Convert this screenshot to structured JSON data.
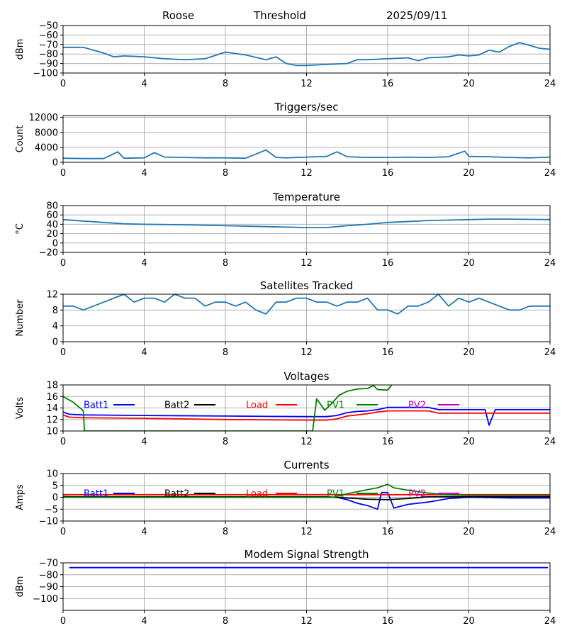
{
  "header": {
    "site": "Roose",
    "mode": "Threshold",
    "date": "2025/09/11"
  },
  "chart_data": [
    {
      "type": "line",
      "title": "",
      "ylabel": "dBm",
      "xlim": [
        0,
        24
      ],
      "ylim": [
        -100,
        -50
      ],
      "xticks": [
        "0",
        "4",
        "8",
        "12",
        "16",
        "20",
        "24"
      ],
      "yticks": [
        "−50",
        "−60",
        "−70",
        "−80",
        "−90",
        "−100"
      ],
      "grid": true,
      "series": [
        {
          "color": "#1f77b4",
          "x": [
            0,
            1,
            2,
            2.5,
            3,
            4,
            5,
            6,
            7,
            8,
            9,
            10,
            10.5,
            11,
            11.5,
            12,
            13,
            14,
            14.5,
            15,
            16,
            17,
            17.5,
            18,
            19,
            19.5,
            20,
            20.5,
            21,
            21.5,
            22,
            22.5,
            23,
            23.5,
            24
          ],
          "y": [
            -73,
            -73,
            -79,
            -83,
            -82,
            -83,
            -85,
            -86,
            -85,
            -78,
            -81,
            -86,
            -83,
            -90,
            -92,
            -92,
            -91,
            -90,
            -86,
            -86,
            -85,
            -84,
            -87,
            -84,
            -83,
            -81,
            -82,
            -81,
            -76,
            -78,
            -72,
            -68,
            -71,
            -74,
            -75
          ]
        }
      ]
    },
    {
      "type": "line",
      "title": "Triggers/sec",
      "ylabel": "Count",
      "xlim": [
        0,
        24
      ],
      "ylim": [
        0,
        12500
      ],
      "xticks": [
        "0",
        "4",
        "8",
        "12",
        "16",
        "20",
        "24"
      ],
      "yticks": [
        "12000",
        "8000",
        "4000",
        "0"
      ],
      "grid": true,
      "series": [
        {
          "color": "#1f77b4",
          "x": [
            0,
            1,
            2,
            2.7,
            3,
            4,
            4.5,
            5,
            6,
            7,
            8,
            9,
            10,
            10.5,
            11,
            12,
            13,
            13.5,
            14,
            15,
            16,
            17,
            18,
            19,
            19.8,
            20,
            21,
            22,
            23,
            24
          ],
          "y": [
            1100,
            1000,
            1000,
            2800,
            1100,
            1200,
            2600,
            1400,
            1300,
            1200,
            1200,
            1100,
            3300,
            1300,
            1200,
            1400,
            1600,
            2800,
            1500,
            1300,
            1300,
            1400,
            1300,
            1500,
            3000,
            1600,
            1500,
            1300,
            1200,
            1400
          ]
        }
      ]
    },
    {
      "type": "line",
      "title": "Temperature",
      "ylabel": "°C",
      "xlim": [
        0,
        24
      ],
      "ylim": [
        -20,
        80
      ],
      "xticks": [
        "0",
        "4",
        "8",
        "12",
        "16",
        "20",
        "24"
      ],
      "yticks": [
        "80",
        "60",
        "40",
        "20",
        "0",
        "−20"
      ],
      "grid": true,
      "series": [
        {
          "color": "#1f77b4",
          "x": [
            0,
            1,
            2,
            3,
            4,
            6,
            8,
            10,
            12,
            13,
            14,
            15,
            16,
            18,
            20,
            21,
            22,
            24
          ],
          "y": [
            50,
            47,
            44,
            41,
            40,
            39,
            37,
            35,
            33,
            33,
            37,
            40,
            44,
            48,
            50,
            51,
            51,
            50
          ]
        }
      ]
    },
    {
      "type": "line",
      "title": "Satellites Tracked",
      "ylabel": "Number",
      "xlim": [
        0,
        24
      ],
      "ylim": [
        0,
        12
      ],
      "xticks": [
        "0",
        "4",
        "8",
        "12",
        "16",
        "20",
        "24"
      ],
      "yticks": [
        "12",
        "8",
        "4",
        "0"
      ],
      "grid": true,
      "series": [
        {
          "color": "#1f77b4",
          "x": [
            0,
            0.5,
            1,
            1.5,
            2,
            2.5,
            3,
            3.5,
            4,
            4.5,
            5,
            5.5,
            6,
            6.5,
            7,
            7.5,
            8,
            8.5,
            9,
            9.5,
            10,
            10.5,
            11,
            11.5,
            12,
            12.5,
            13,
            13.5,
            14,
            14.5,
            15,
            15.5,
            16,
            16.5,
            17,
            17.5,
            18,
            18.5,
            19,
            19.5,
            20,
            20.5,
            21,
            21.5,
            22,
            22.5,
            23,
            23.5,
            24
          ],
          "y": [
            9,
            9,
            8,
            9,
            10,
            11,
            12,
            10,
            11,
            11,
            10,
            12,
            11,
            11,
            9,
            10,
            10,
            9,
            10,
            8,
            7,
            10,
            10,
            11,
            11,
            10,
            10,
            9,
            10,
            10,
            11,
            8,
            8,
            7,
            9,
            9,
            10,
            12,
            9,
            11,
            10,
            11,
            10,
            9,
            8,
            8,
            9,
            9,
            9
          ]
        }
      ]
    },
    {
      "type": "line",
      "title": "Voltages",
      "ylabel": "Volts",
      "xlim": [
        0,
        24
      ],
      "ylim": [
        10,
        18
      ],
      "xticks": [
        "0",
        "4",
        "8",
        "12",
        "16",
        "20",
        "24"
      ],
      "yticks": [
        "18",
        "16",
        "14",
        "12",
        "10"
      ],
      "grid": true,
      "legend": [
        "Batt1",
        "Batt2",
        "Load",
        "PV1",
        "PV2"
      ],
      "series": [
        {
          "name": "Batt1",
          "color": "#0000ff",
          "x": [
            0,
            0.3,
            1,
            4,
            8,
            12,
            13,
            13.5,
            14,
            14.5,
            15,
            15.5,
            16,
            17,
            18,
            18.5,
            20,
            20.8,
            21,
            21.3,
            22,
            24
          ],
          "y": [
            13.3,
            12.9,
            12.8,
            12.7,
            12.6,
            12.5,
            12.5,
            12.7,
            13.2,
            13.4,
            13.5,
            13.7,
            14.1,
            14.1,
            14.1,
            13.7,
            13.7,
            13.7,
            11,
            13.7,
            13.7,
            13.7
          ]
        },
        {
          "name": "Load",
          "color": "#ff0000",
          "x": [
            0,
            0.3,
            1,
            4,
            8,
            12,
            13,
            13.5,
            14,
            14.5,
            15,
            15.5,
            16,
            17,
            18,
            18.5,
            20,
            24
          ],
          "y": [
            12.8,
            12.4,
            12.3,
            12.2,
            12.0,
            11.9,
            11.9,
            12.1,
            12.6,
            12.8,
            13.0,
            13.3,
            13.5,
            13.5,
            13.5,
            13.1,
            13.1,
            13.1
          ]
        },
        {
          "name": "PV1",
          "color": "#008000",
          "x": [
            0,
            0.5,
            0.9,
            1.0,
            1.05,
            12.3,
            12.5,
            12.9,
            13.3,
            13.6,
            14,
            14.5,
            15,
            15.3,
            15.5,
            16,
            16.2
          ],
          "y": [
            16,
            15,
            13.8,
            13.5,
            10,
            10,
            15.6,
            13.6,
            15,
            16.2,
            16.9,
            17.3,
            17.4,
            17.9,
            17.2,
            17.1,
            18
          ]
        }
      ]
    },
    {
      "type": "line",
      "title": "Currents",
      "ylabel": "Amps",
      "xlim": [
        0,
        24
      ],
      "ylim": [
        -10,
        10
      ],
      "xticks": [
        "0",
        "4",
        "8",
        "12",
        "16",
        "20",
        "24"
      ],
      "yticks": [
        "10",
        "5",
        "0",
        "−5",
        "−10"
      ],
      "grid": true,
      "legend": [
        "Batt1",
        "Batt2",
        "Load",
        "PV1",
        "PV2"
      ],
      "series": [
        {
          "name": "Batt1",
          "color": "#0000ff",
          "x": [
            0,
            1,
            4,
            8,
            12,
            13.5,
            14,
            14.5,
            15,
            15.5,
            15.7,
            16,
            16.3,
            17,
            18,
            19,
            20,
            21,
            22,
            24
          ],
          "y": [
            0.3,
            0,
            0,
            0,
            0,
            0,
            -1,
            -2.5,
            -3.5,
            -5,
            2,
            2,
            -4.5,
            -3,
            -2,
            -0.5,
            0,
            -0.1,
            -0.3,
            -0.3
          ]
        },
        {
          "name": "Load",
          "color": "#ff0000",
          "x": [
            0,
            24
          ],
          "y": [
            1.1,
            1.1
          ]
        },
        {
          "name": "Batt2",
          "color": "#000000",
          "x": [
            0,
            13,
            14,
            15,
            16,
            17,
            18,
            24
          ],
          "y": [
            0.2,
            0.2,
            -0.3,
            -0.8,
            -1,
            -0.5,
            0.2,
            0.2
          ]
        },
        {
          "name": "PV1",
          "color": "#008000",
          "x": [
            0,
            13.3,
            14,
            15,
            15.5,
            16,
            16.3,
            17,
            18,
            19,
            20,
            24
          ],
          "y": [
            0,
            0,
            1.5,
            3.2,
            4,
            5.5,
            4,
            3,
            1.8,
            1,
            0.8,
            0.8
          ]
        }
      ]
    },
    {
      "type": "line",
      "title": "Modem Signal Strength",
      "ylabel": "dBm",
      "xlim": [
        0,
        24
      ],
      "ylim": [
        -110,
        -70
      ],
      "xticks": [
        "0",
        "4",
        "8",
        "12",
        "16",
        "20",
        "24"
      ],
      "yticks": [
        "−70",
        "−80",
        "−90",
        "−100"
      ],
      "grid": true,
      "series": [
        {
          "color": "#0000ff",
          "x": [
            0.3,
            23.9
          ],
          "y": [
            -74,
            -74
          ]
        }
      ]
    }
  ]
}
